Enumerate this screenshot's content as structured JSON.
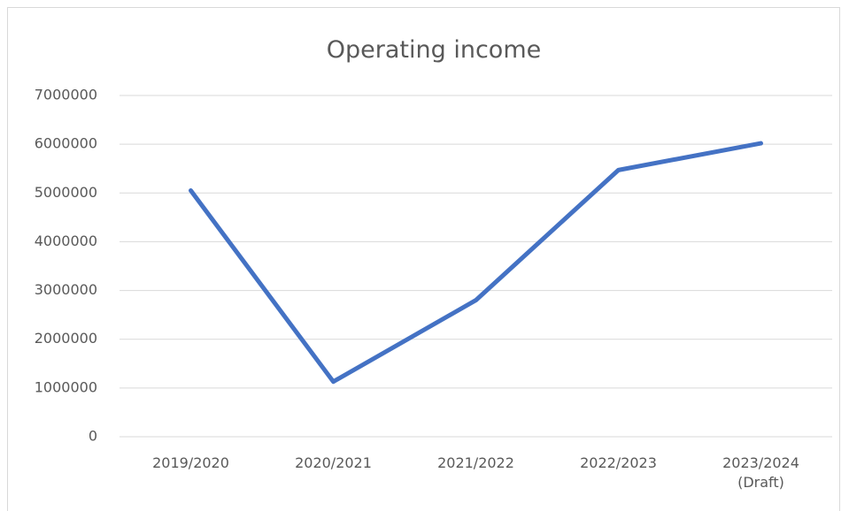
{
  "chart_data": {
    "type": "line",
    "title": "Operating income",
    "categories": [
      "2019/2020",
      "2020/2021",
      "2021/2022",
      "2022/2023",
      "2023/2024 (Draft)"
    ],
    "series": [
      {
        "name": "Operating income",
        "color": "#4472c4",
        "values": [
          5050000,
          1130000,
          2800000,
          5470000,
          6020000
        ]
      }
    ],
    "ylim": [
      0,
      7000000
    ],
    "yticks": [
      0,
      1000000,
      2000000,
      3000000,
      4000000,
      5000000,
      6000000,
      7000000
    ],
    "grid": true
  }
}
